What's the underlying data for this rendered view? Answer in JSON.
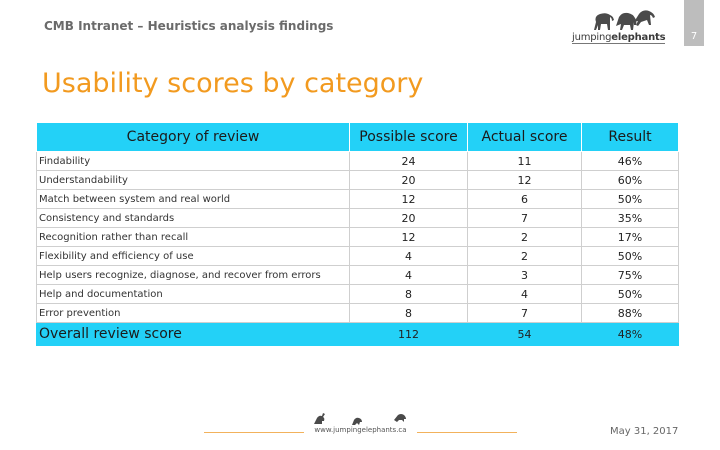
{
  "header": {
    "title": "CMB Intranet – Heuristics analysis findings",
    "page_number": "7"
  },
  "logo": {
    "text_light": "jumping",
    "text_bold": "elephants",
    "icon": "elephants-icon"
  },
  "slide": {
    "title": "Usability scores by category"
  },
  "table": {
    "headers": [
      "Category of review",
      "Possible score",
      "Actual score",
      "Result"
    ],
    "rows": [
      {
        "category": "Findability",
        "possible": "24",
        "actual": "11",
        "result": "46%"
      },
      {
        "category": "Understandability",
        "possible": "20",
        "actual": "12",
        "result": "60%"
      },
      {
        "category": "Match between system and real world",
        "possible": "12",
        "actual": "6",
        "result": "50%"
      },
      {
        "category": "Consistency and standards",
        "possible": "20",
        "actual": "7",
        "result": "35%"
      },
      {
        "category": "Recognition rather than recall",
        "possible": "12",
        "actual": "2",
        "result": "17%"
      },
      {
        "category": "Flexibility and efficiency of use",
        "possible": "4",
        "actual": "2",
        "result": "50%"
      },
      {
        "category": "Help users recognize, diagnose, and recover from errors",
        "possible": "4",
        "actual": "3",
        "result": "75%"
      },
      {
        "category": "Help and documentation",
        "possible": "8",
        "actual": "4",
        "result": "50%"
      },
      {
        "category": "Error prevention",
        "possible": "8",
        "actual": "7",
        "result": "88%"
      }
    ],
    "overall": {
      "category": "Overall review score",
      "possible": "112",
      "actual": "54",
      "result": "48%"
    }
  },
  "footer": {
    "url": "www.jumpingelephants.ca",
    "date": "May 31, 2017"
  },
  "colors": {
    "accent_orange": "#f29a1f",
    "table_header_cyan": "#23d1f7"
  }
}
